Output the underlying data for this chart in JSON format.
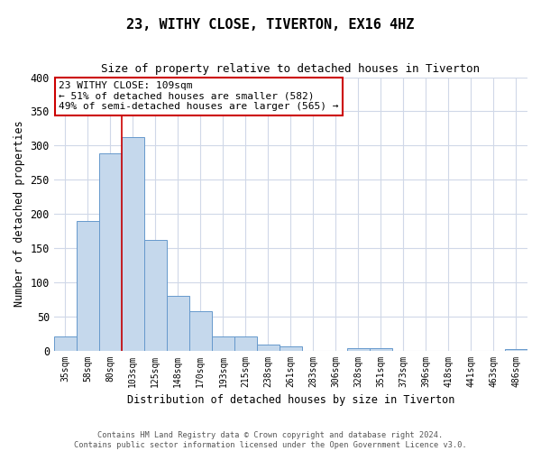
{
  "title": "23, WITHY CLOSE, TIVERTON, EX16 4HZ",
  "subtitle": "Size of property relative to detached houses in Tiverton",
  "xlabel": "Distribution of detached houses by size in Tiverton",
  "ylabel": "Number of detached properties",
  "bar_color": "#c5d8ec",
  "bar_edge_color": "#6699cc",
  "annotation_box_color": "#cc0000",
  "vline_color": "#cc0000",
  "annotation_text": "23 WITHY CLOSE: 109sqm\n← 51% of detached houses are smaller (582)\n49% of semi-detached houses are larger (565) →",
  "categories": [
    "35sqm",
    "58sqm",
    "80sqm",
    "103sqm",
    "125sqm",
    "148sqm",
    "170sqm",
    "193sqm",
    "215sqm",
    "238sqm",
    "261sqm",
    "283sqm",
    "306sqm",
    "328sqm",
    "351sqm",
    "373sqm",
    "396sqm",
    "418sqm",
    "441sqm",
    "463sqm",
    "486sqm"
  ],
  "values": [
    20,
    190,
    288,
    312,
    162,
    80,
    58,
    20,
    20,
    8,
    6,
    0,
    0,
    4,
    4,
    0,
    0,
    0,
    0,
    0,
    2
  ],
  "ylim": [
    0,
    400
  ],
  "yticks": [
    0,
    50,
    100,
    150,
    200,
    250,
    300,
    350,
    400
  ],
  "footer": "Contains HM Land Registry data © Crown copyright and database right 2024.\nContains public sector information licensed under the Open Government Licence v3.0.",
  "background_color": "#ffffff",
  "grid_color": "#d0d8e8"
}
